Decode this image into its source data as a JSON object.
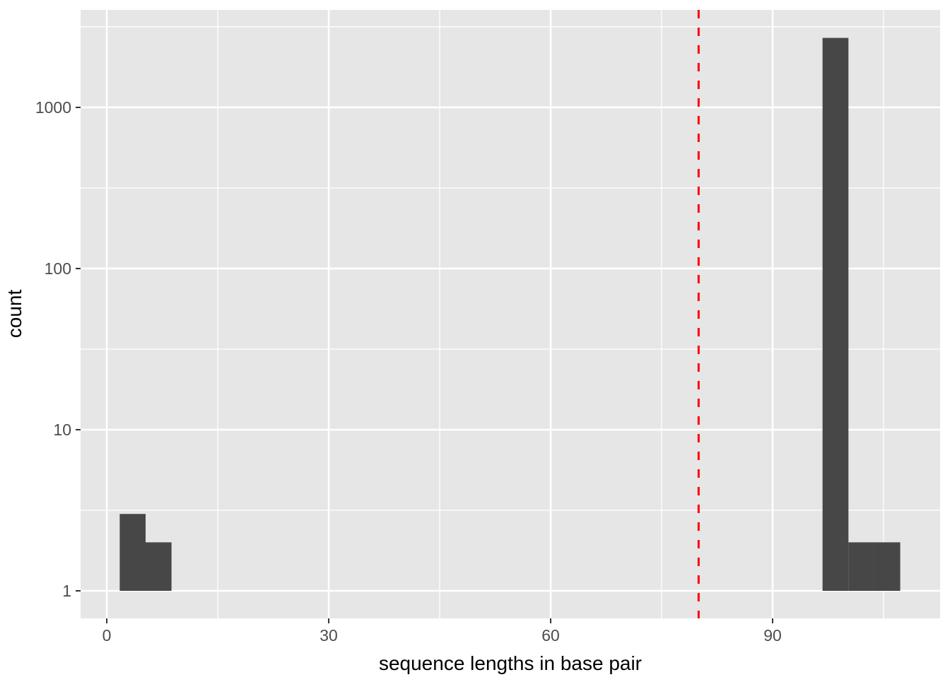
{
  "figure": {
    "background": "#FFFFFF",
    "title": "",
    "legend": "none"
  },
  "chart_data": {
    "type": "bar",
    "subtype": "histogram",
    "title": "",
    "xlabel": "sequence lengths in base pair",
    "ylabel": "count",
    "y_scale": "log10",
    "grid": true,
    "legend_position": "none",
    "xlim": [
      -3.54,
      112.64
    ],
    "ylim_log10": [
      -0.171,
      3.605
    ],
    "x_ticks": [
      0,
      30,
      60,
      90
    ],
    "x_minor_ticks": [
      15,
      45,
      75,
      105
    ],
    "y_ticks": [
      1,
      10,
      100,
      1000
    ],
    "y_minor_ticks": [
      3.162,
      31.62,
      316.2,
      3162
    ],
    "bar_base_count": 1,
    "bin_width": 3.5,
    "bins": [
      {
        "x0": 1.75,
        "x1": 5.25,
        "count": 3
      },
      {
        "x0": 5.25,
        "x1": 8.75,
        "count": 2
      },
      {
        "x0": 96.75,
        "x1": 100.25,
        "count": 2700
      },
      {
        "x0": 100.25,
        "x1": 103.75,
        "count": 2
      },
      {
        "x0": 103.75,
        "x1": 107.25,
        "count": 2
      }
    ],
    "vline": {
      "x": 80,
      "color": "#FF0000",
      "style": "dashed",
      "width": 3
    },
    "colors": {
      "bar_fill": "#474747",
      "panel_bg": "#E6E6E6",
      "grid_major": "#FFFFFF",
      "grid_minor": "#FFFFFF",
      "tick_mark": "#333333",
      "tick_label": "#4D4D4D",
      "axis_title": "#000000"
    }
  }
}
